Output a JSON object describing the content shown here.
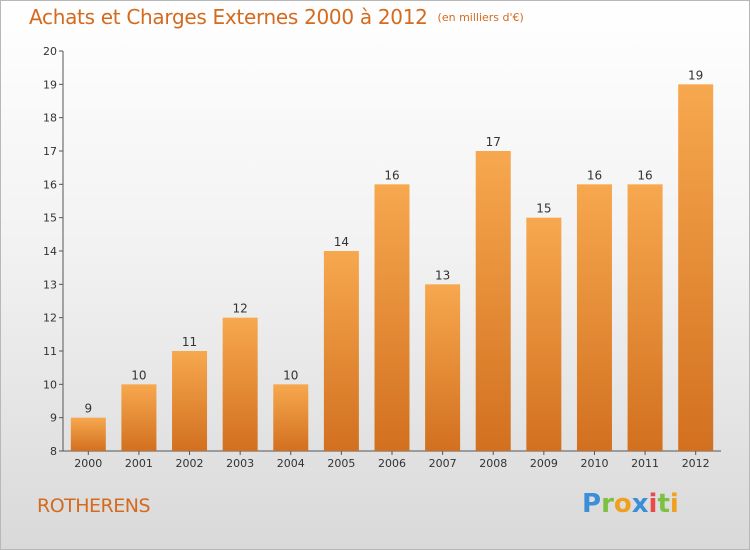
{
  "title": "Achats et Charges Externes 2000 à 2012",
  "unit": "(en milliers d'€)",
  "place": "ROTHERENS",
  "logo": "Proxiti",
  "colors": {
    "accent": "#d46a1e",
    "bar_top": "#f7a84f",
    "bar_bottom": "#d2701f"
  },
  "chart_data": {
    "type": "bar",
    "title": "Achats et Charges Externes 2000 à 2012",
    "xlabel": "",
    "ylabel": "",
    "categories": [
      "2000",
      "2001",
      "2002",
      "2003",
      "2004",
      "2005",
      "2006",
      "2007",
      "2008",
      "2009",
      "2010",
      "2011",
      "2012"
    ],
    "values": [
      9,
      10,
      11,
      12,
      10,
      14,
      16,
      13,
      17,
      15,
      16,
      16,
      19
    ],
    "ylim": [
      8,
      20
    ],
    "yticks": [
      8,
      9,
      10,
      11,
      12,
      13,
      14,
      15,
      16,
      17,
      18,
      19,
      20
    ],
    "grid": false,
    "legend": "none"
  }
}
